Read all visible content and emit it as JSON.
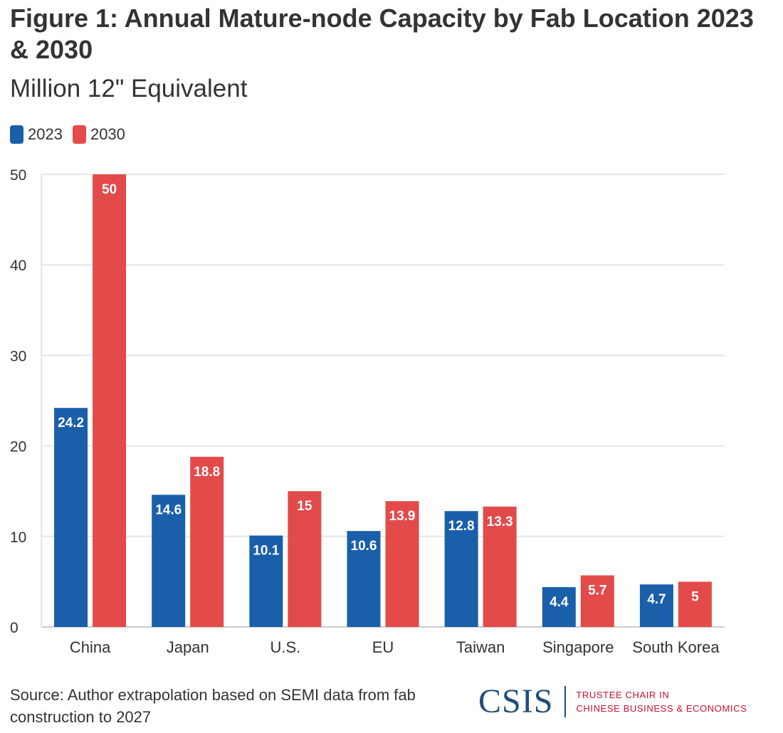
{
  "title": "Figure 1: Annual Mature-node Capacity by Fab Location 2023 & 2030",
  "subtitle": "Million 12\" Equivalent",
  "source": "Source: Author extrapolation based on SEMI data from fab construction to 2027",
  "logo": {
    "wordmark": "CSIS",
    "line1": "TRUSTEE CHAIR IN",
    "line2": "CHINESE BUSINESS & ECONOMICS"
  },
  "colors": {
    "series_2023": "#1a5faa",
    "series_2030": "#e34a4a",
    "grid": "#e6e6e6",
    "text": "#333333"
  },
  "chart_data": {
    "type": "bar",
    "title": "Figure 1: Annual Mature-node Capacity by Fab Location 2023 & 2030",
    "subtitle": "Million 12\" Equivalent",
    "categories": [
      "China",
      "Japan",
      "U.S.",
      "EU",
      "Taiwan",
      "Singapore",
      "South Korea"
    ],
    "series": [
      {
        "name": "2023",
        "values": [
          24.2,
          14.6,
          10.1,
          10.6,
          12.8,
          4.4,
          4.7
        ],
        "labels": [
          "24.2",
          "14.6",
          "10.1",
          "10.6",
          "12.8",
          "4.4",
          "4.7"
        ]
      },
      {
        "name": "2030",
        "values": [
          50,
          18.8,
          15,
          13.9,
          13.3,
          5.7,
          5
        ],
        "labels": [
          "50",
          "18.8",
          "15",
          "13.9",
          "13.3",
          "5.7",
          "5"
        ]
      }
    ],
    "ylim": [
      0,
      50
    ],
    "yticks": [
      0,
      10,
      20,
      30,
      40,
      50
    ],
    "xlabel": "",
    "ylabel": "",
    "grid": true,
    "legend_position": "top-left"
  }
}
